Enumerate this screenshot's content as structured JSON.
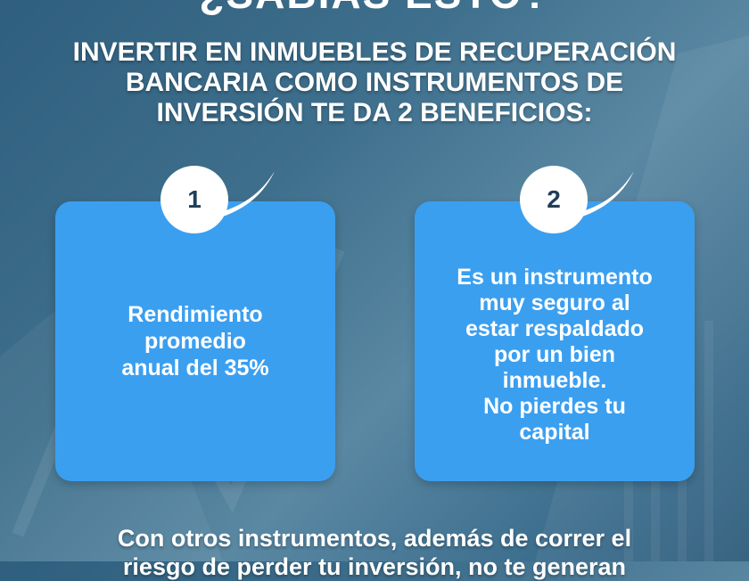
{
  "title": "¿SABÍAS ESTO?",
  "heading": [
    "INVERTIR EN INMUEBLES DE RECUPERACIÓN",
    "BANCARIA COMO INSTRUMENTOS DE",
    "INVERSIÓN TE DA 2 BENEFICIOS:"
  ],
  "cards": [
    {
      "number": "1",
      "lines": [
        "Rendimiento",
        "promedio",
        "anual del 35%"
      ]
    },
    {
      "number": "2",
      "lines": [
        "Es un instrumento",
        "muy seguro al",
        "estar respaldado",
        "por un bien",
        "inmueble.",
        "No pierdes tu",
        "capital"
      ]
    }
  ],
  "footer": [
    "Con otros instrumentos, además de correr el",
    "riesgo de perder tu inversión, no te generan"
  ],
  "colors": {
    "card": "#3b9ff0",
    "background": "#3e6f8c",
    "badge_text": "#1f3e5a"
  }
}
